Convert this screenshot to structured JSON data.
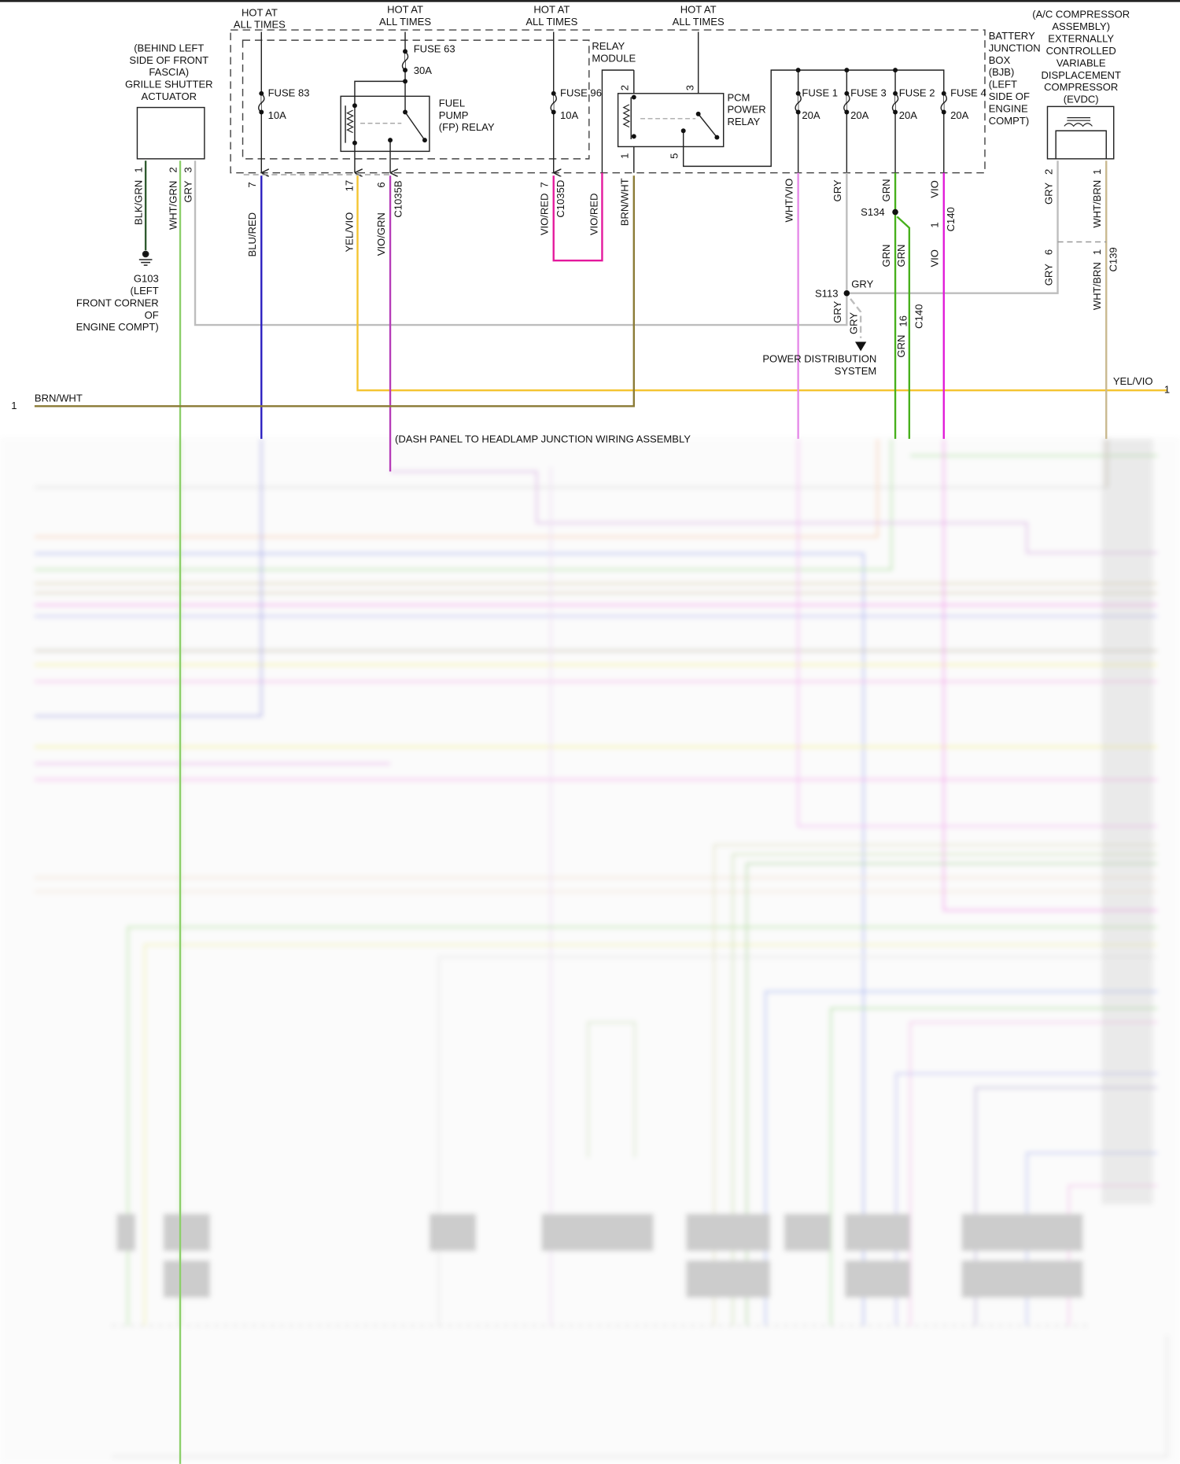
{
  "hot_label": [
    "HOT AT",
    "ALL TIMES"
  ],
  "grille": {
    "lines": [
      "(BEHIND LEFT",
      "SIDE OF FRONT",
      "FASCIA)",
      "GRILLE SHUTTER",
      "ACTUATOR"
    ],
    "pins": [
      "1",
      "2",
      "3"
    ],
    "wires": [
      "BLK/GRN",
      "WHT/GRN",
      "GRY"
    ]
  },
  "ground": {
    "lines": [
      "G103",
      "(LEFT",
      "FRONT CORNER",
      "OF",
      "ENGINE COMPT)"
    ]
  },
  "fuses": {
    "f83": [
      "FUSE 83",
      "10A"
    ],
    "f63": [
      "FUSE 63",
      "30A"
    ],
    "f96": [
      "FUSE 96",
      "10A"
    ],
    "f1": [
      "FUSE 1",
      "20A"
    ],
    "f3": [
      "FUSE 3",
      "20A"
    ],
    "f2": [
      "FUSE 2",
      "20A"
    ],
    "f4": [
      "FUSE 4",
      "20A"
    ]
  },
  "fp_relay": [
    "FUEL",
    "PUMP",
    "(FP) RELAY"
  ],
  "relay_module": [
    "RELAY",
    "MODULE"
  ],
  "pcm_relay": {
    "lines": [
      "PCM",
      "POWER",
      "RELAY"
    ],
    "pins": [
      "2",
      "3",
      "1",
      "5"
    ]
  },
  "bjb": [
    "BATTERY",
    "JUNCTION",
    "BOX",
    "(BJB)",
    "(LEFT",
    "SIDE OF",
    "ENGINE",
    "COMPT)"
  ],
  "evdc": {
    "lines": [
      "(A/C COMPRESSOR",
      "ASSEMBLY)",
      "EXTERNALLY",
      "CONTROLLED",
      "VARIABLE",
      "DISPLACEMENT",
      "COMPRESSOR",
      "(EVDC)"
    ],
    "pins": [
      "2",
      "1"
    ]
  },
  "connectors": {
    "c1035b": {
      "name": "C1035B",
      "pins": [
        "7",
        "17",
        "6"
      ]
    },
    "c1035d": {
      "name": "C1035D",
      "pin": "7"
    },
    "c140": {
      "name": "C140",
      "pins": [
        "1",
        "16"
      ]
    },
    "c139": {
      "name": "C139",
      "pins": [
        "6",
        "1"
      ]
    }
  },
  "wires": {
    "blu_red": "BLU/RED",
    "yel_vio": "YEL/VIO",
    "vio_grn": "VIO/GRN",
    "vio_red": "VIO/RED",
    "brn_wht": "BRN/WHT",
    "wht_vio": "WHT/VIO",
    "gry": "GRY",
    "grn": "GRN",
    "vio": "VIO",
    "wht_brn": "WHT/BRN"
  },
  "splices": {
    "s134": "S134",
    "s113": "S113"
  },
  "power_distribution": [
    "POWER DISTRIBUTION",
    "SYSTEM"
  ],
  "line_refs": {
    "yel_vio_end": "1",
    "brn_wht_start": "1"
  },
  "dash_panel_note": "(DASH PANEL TO HEADLAMP JUNCTION WIRING ASSEMBLY",
  "colors": {
    "blu_red": "#2a1fc0",
    "yel_vio": "#f4c430",
    "vio_grn": "#b63cb8",
    "vio_red": "#e4189c",
    "brn_wht": "#8a7a34",
    "wht_vio": "#e58ae8",
    "gry": "#bdbdbd",
    "grn": "#47b01c",
    "vio": "#e11ad8",
    "wht_brn": "#c9b98f",
    "blk_grn": "#2f5a2f",
    "wht_grn": "#8ccf6a"
  }
}
